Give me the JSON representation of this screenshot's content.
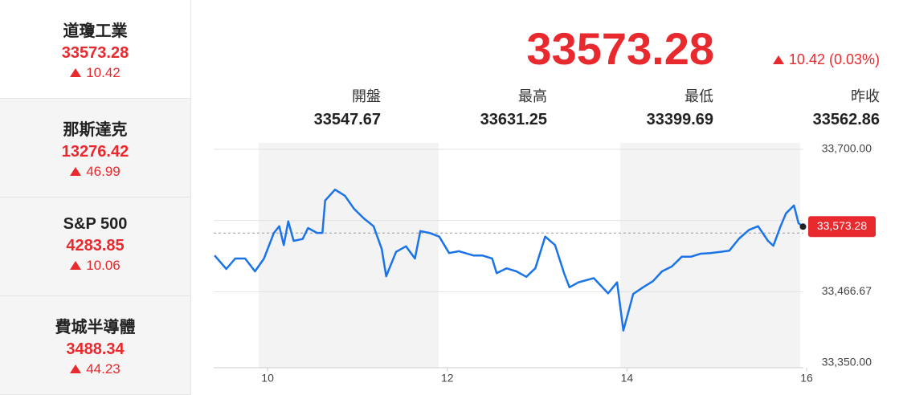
{
  "sidebar": [
    {
      "name": "道瓊工業",
      "value": "33573.28",
      "change": "10.42"
    },
    {
      "name": "那斯達克",
      "value": "13276.42",
      "change": "46.99"
    },
    {
      "name": "S&P 500",
      "value": "4283.85",
      "change": "10.06"
    },
    {
      "name": "費城半導體",
      "value": "3488.34",
      "change": "44.23"
    }
  ],
  "header": {
    "price": "33573.28",
    "change": "10.42 (0.03%)"
  },
  "stats": [
    {
      "label": "開盤",
      "value": "33547.67"
    },
    {
      "label": "最高",
      "value": "33631.25"
    },
    {
      "label": "最低",
      "value": "33399.69"
    },
    {
      "label": "昨收",
      "value": "33562.86"
    }
  ],
  "chart_data": {
    "type": "line",
    "color": "#1a73e8",
    "x": [
      9.41,
      9.54,
      9.64,
      9.75,
      9.86,
      9.96,
      10.07,
      10.13,
      10.18,
      10.23,
      10.29,
      10.39,
      10.45,
      10.55,
      10.61,
      10.64,
      10.75,
      10.86,
      10.96,
      11.07,
      11.18,
      11.27,
      11.32,
      11.43,
      11.54,
      11.64,
      11.7,
      11.8,
      11.91,
      12.02,
      12.13,
      12.29,
      12.39,
      12.5,
      12.55,
      12.66,
      12.77,
      12.88,
      12.98,
      13.09,
      13.2,
      13.3,
      13.36,
      13.46,
      13.63,
      13.79,
      13.89,
      13.96,
      14.07,
      14.18,
      14.29,
      14.39,
      14.5,
      14.61,
      14.71,
      14.82,
      14.93,
      15.04,
      15.14,
      15.25,
      15.36,
      15.46,
      15.57,
      15.63,
      15.71,
      15.77,
      15.86,
      15.91,
      15.96
    ],
    "values": [
      33526,
      33504,
      33521,
      33521,
      33500,
      33521,
      33563,
      33574,
      33543,
      33582,
      33550,
      33553,
      33571,
      33563,
      33563,
      33616,
      33634,
      33624,
      33603,
      33587,
      33574,
      33537,
      33492,
      33532,
      33541,
      33521,
      33566,
      33563,
      33557,
      33530,
      33533,
      33526,
      33526,
      33521,
      33497,
      33505,
      33500,
      33491,
      33505,
      33557,
      33543,
      33497,
      33474,
      33482,
      33489,
      33464,
      33482,
      33403,
      33463,
      33474,
      33484,
      33500,
      33508,
      33524,
      33524,
      33529,
      33530,
      33532,
      33534,
      33554,
      33568,
      33574,
      33550,
      33542,
      33574,
      33595,
      33608,
      33579,
      33573.28
    ],
    "xlim": [
      9.4,
      16
    ],
    "xticks": [
      10,
      12,
      14,
      16
    ],
    "ylim": [
      33350,
      33700
    ],
    "yticks": [
      {
        "value": 33350,
        "label": "33,350.00"
      },
      {
        "value": 33466.67,
        "label": "33,466.67"
      },
      {
        "value": 33583.33,
        "label": null
      },
      {
        "value": 33700,
        "label": "33,700.00"
      }
    ],
    "reference_line": 33562.86,
    "last_label": {
      "value": 33573.28,
      "label": "33,573.28"
    },
    "grid": true
  }
}
